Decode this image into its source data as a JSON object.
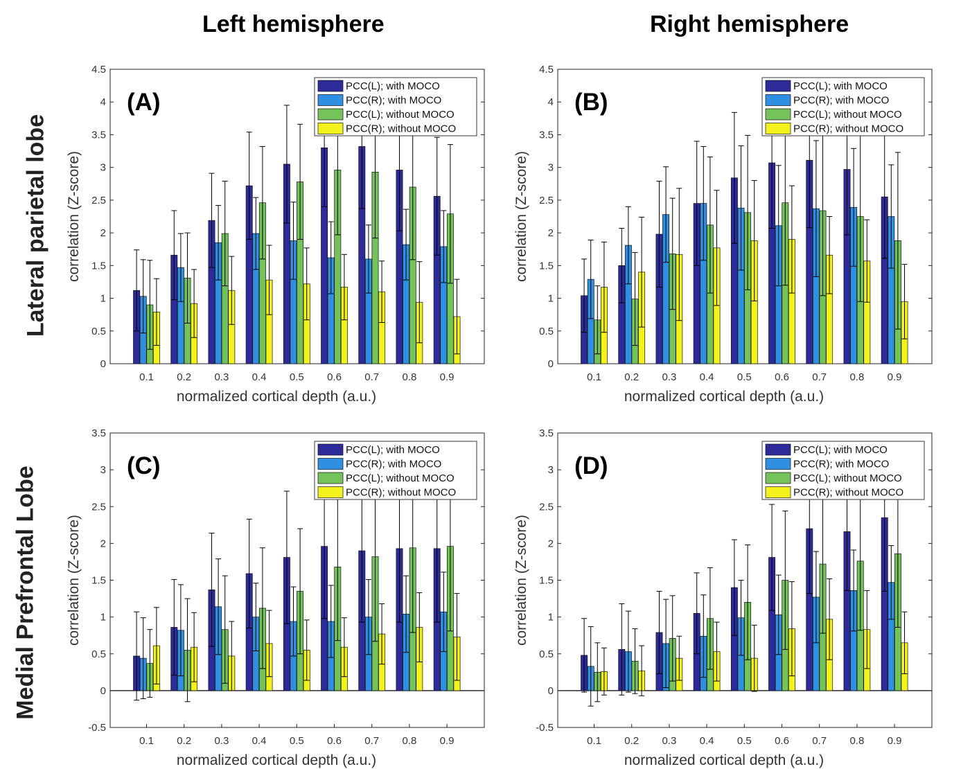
{
  "column_titles": [
    "Left hemisphere",
    "Right hemisphere"
  ],
  "row_titles": [
    "Lateral parietal lobe",
    "Medial Prefrontal Lobe"
  ],
  "colors": {
    "PCC(L); with MOCO": "#2d2a9a",
    "PCC(R); with MOCO": "#2f8fe0",
    "PCC(L); without MOCO": "#73c25a",
    "PCC(R); without MOCO": "#f4f21c"
  },
  "chart_data": [
    {
      "type": "bar",
      "panel_label": "(A)",
      "xlabel": "normalized cortical depth (a.u.)",
      "ylabel": "correlation (Z-score)",
      "ylim": [
        0,
        4.5
      ],
      "yticks": [
        "0",
        "0.5",
        "1",
        "1.5",
        "2",
        "2.5",
        "3",
        "3.5",
        "4",
        "4.5"
      ],
      "categories": [
        "0.1",
        "0.2",
        "0.3",
        "0.4",
        "0.5",
        "0.6",
        "0.7",
        "0.8",
        "0.9"
      ],
      "legend_position": "top-right",
      "series": [
        {
          "name": "PCC(L); with MOCO",
          "values": [
            1.12,
            1.66,
            2.19,
            2.72,
            3.05,
            3.3,
            3.32,
            2.96,
            2.56
          ],
          "errors": [
            0.62,
            0.68,
            0.72,
            0.82,
            0.9,
            0.9,
            0.95,
            0.93,
            0.9
          ]
        },
        {
          "name": "PCC(R); with MOCO",
          "values": [
            1.03,
            1.47,
            1.85,
            1.99,
            1.88,
            1.62,
            1.6,
            1.82,
            1.79
          ],
          "errors": [
            0.56,
            0.52,
            0.57,
            0.55,
            0.59,
            0.55,
            0.52,
            0.54,
            0.55
          ]
        },
        {
          "name": "PCC(L); without MOCO",
          "values": [
            0.9,
            1.31,
            1.99,
            2.46,
            2.78,
            2.96,
            2.93,
            2.7,
            2.29
          ],
          "errors": [
            0.68,
            0.69,
            0.8,
            0.86,
            0.88,
            0.99,
            1.01,
            1.11,
            1.06
          ]
        },
        {
          "name": "PCC(R); without MOCO",
          "values": [
            0.79,
            0.92,
            1.12,
            1.28,
            1.22,
            1.17,
            1.1,
            0.94,
            0.72
          ],
          "errors": [
            0.51,
            0.52,
            0.52,
            0.53,
            0.55,
            0.5,
            0.47,
            0.62,
            0.57
          ]
        }
      ]
    },
    {
      "type": "bar",
      "panel_label": "(B)",
      "xlabel": "normalized cortical depth (a.u.)",
      "ylabel": "correlation (Z-score)",
      "ylim": [
        0,
        4.5
      ],
      "yticks": [
        "0",
        "0.5",
        "1",
        "1.5",
        "2",
        "2.5",
        "3",
        "3.5",
        "4",
        "4.5"
      ],
      "categories": [
        "0.1",
        "0.2",
        "0.3",
        "0.4",
        "0.5",
        "0.6",
        "0.7",
        "0.8",
        "0.9"
      ],
      "legend_position": "top-right",
      "series": [
        {
          "name": "PCC(L); with MOCO",
          "values": [
            1.04,
            1.5,
            1.98,
            2.45,
            2.84,
            3.07,
            3.11,
            2.97,
            2.55
          ],
          "errors": [
            0.56,
            0.57,
            0.81,
            0.95,
            1.0,
            1.0,
            1.03,
            1.0,
            0.94
          ]
        },
        {
          "name": "PCC(R); with MOCO",
          "values": [
            1.29,
            1.81,
            2.28,
            2.45,
            2.38,
            2.11,
            2.37,
            2.39,
            2.25
          ],
          "errors": [
            0.6,
            0.59,
            0.73,
            0.87,
            0.95,
            0.92,
            1.04,
            0.9,
            0.79
          ]
        },
        {
          "name": "PCC(L); without MOCO",
          "values": [
            0.67,
            0.99,
            1.68,
            2.12,
            2.31,
            2.46,
            2.34,
            2.25,
            1.88
          ],
          "errors": [
            0.52,
            0.71,
            0.85,
            1.04,
            1.18,
            1.26,
            1.3,
            1.3,
            1.35
          ]
        },
        {
          "name": "PCC(R); without MOCO",
          "values": [
            1.17,
            1.4,
            1.67,
            1.77,
            1.88,
            1.9,
            1.66,
            1.57,
            0.95
          ],
          "errors": [
            0.69,
            0.84,
            1.01,
            0.88,
            0.92,
            0.82,
            0.59,
            0.63,
            0.57
          ]
        }
      ]
    },
    {
      "type": "bar",
      "panel_label": "(C)",
      "xlabel": "normalized cortical depth (a.u.)",
      "ylabel": "correlation (Z-score)",
      "ylim": [
        -0.5,
        3.5
      ],
      "yticks": [
        "-0.5",
        "0",
        "0.5",
        "1",
        "1.5",
        "2",
        "2.5",
        "3",
        "3.5"
      ],
      "categories": [
        "0.1",
        "0.2",
        "0.3",
        "0.4",
        "0.5",
        "0.6",
        "0.7",
        "0.8",
        "0.9"
      ],
      "legend_position": "top-right",
      "series": [
        {
          "name": "PCC(L); with MOCO",
          "values": [
            0.47,
            0.86,
            1.37,
            1.59,
            1.81,
            1.96,
            1.9,
            1.93,
            1.93
          ],
          "errors": [
            0.6,
            0.65,
            0.77,
            0.74,
            0.9,
            0.98,
            0.97,
            1.0,
            1.0
          ]
        },
        {
          "name": "PCC(R); with MOCO",
          "values": [
            0.44,
            0.82,
            1.14,
            1.0,
            0.94,
            0.94,
            1.0,
            1.04,
            1.07
          ],
          "errors": [
            0.55,
            0.62,
            0.65,
            0.46,
            0.47,
            0.49,
            0.51,
            0.52,
            0.54
          ]
        },
        {
          "name": "PCC(L); without MOCO",
          "values": [
            0.37,
            0.55,
            0.83,
            1.12,
            1.35,
            1.68,
            1.82,
            1.94,
            1.96
          ],
          "errors": [
            0.46,
            0.7,
            0.73,
            0.82,
            0.85,
            1.0,
            1.15,
            1.15,
            1.15
          ]
        },
        {
          "name": "PCC(R); without MOCO",
          "values": [
            0.61,
            0.59,
            0.47,
            0.64,
            0.55,
            0.59,
            0.77,
            0.86,
            0.73
          ],
          "errors": [
            0.52,
            0.47,
            0.47,
            0.45,
            0.41,
            0.4,
            0.41,
            0.47,
            0.59
          ]
        }
      ]
    },
    {
      "type": "bar",
      "panel_label": "(D)",
      "xlabel": "normalized cortical depth (a.u.)",
      "ylabel": "correlation (Z-score)",
      "ylim": [
        -0.5,
        3.5
      ],
      "yticks": [
        "-0.5",
        "0",
        "0.5",
        "1",
        "1.5",
        "2",
        "2.5",
        "3",
        "3.5"
      ],
      "categories": [
        "0.1",
        "0.2",
        "0.3",
        "0.4",
        "0.5",
        "0.6",
        "0.7",
        "0.8",
        "0.9"
      ],
      "legend_position": "top-right",
      "series": [
        {
          "name": "PCC(L); with MOCO",
          "values": [
            0.48,
            0.56,
            0.79,
            1.05,
            1.4,
            1.81,
            2.2,
            2.16,
            2.35
          ],
          "errors": [
            0.5,
            0.62,
            0.56,
            0.55,
            0.65,
            0.72,
            0.88,
            0.8,
            1.0
          ]
        },
        {
          "name": "PCC(R); with MOCO",
          "values": [
            0.33,
            0.53,
            0.64,
            0.74,
            0.99,
            1.03,
            1.27,
            1.36,
            1.47
          ],
          "errors": [
            0.54,
            0.55,
            0.6,
            0.56,
            0.51,
            0.54,
            0.62,
            0.55,
            0.5
          ]
        },
        {
          "name": "PCC(L); without MOCO",
          "values": [
            0.25,
            0.4,
            0.71,
            0.98,
            1.2,
            1.5,
            1.72,
            1.76,
            1.86
          ],
          "errors": [
            0.4,
            0.44,
            0.58,
            0.69,
            0.78,
            0.94,
            0.94,
            0.94,
            1.0
          ]
        },
        {
          "name": "PCC(R); without MOCO",
          "values": [
            0.26,
            0.27,
            0.44,
            0.53,
            0.44,
            0.84,
            0.97,
            0.83,
            0.65
          ],
          "errors": [
            0.32,
            0.34,
            0.3,
            0.4,
            0.45,
            0.64,
            0.55,
            0.53,
            0.42
          ]
        }
      ]
    }
  ]
}
